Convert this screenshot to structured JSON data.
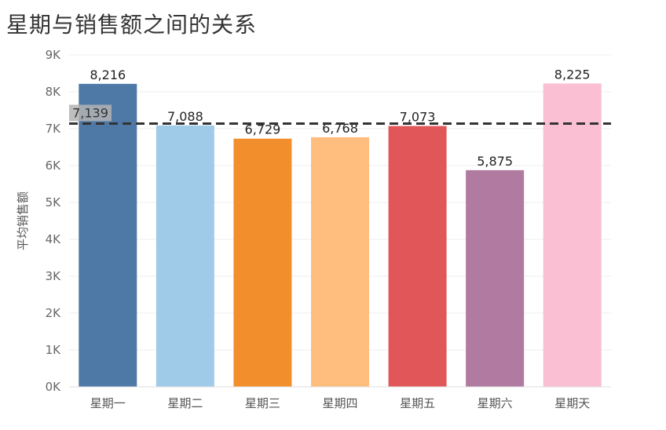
{
  "chart_data": {
    "type": "bar",
    "title": "星期与销售额之间的关系",
    "xlabel": "",
    "ylabel": "平均销售额",
    "categories": [
      "星期一",
      "星期二",
      "星期三",
      "星期四",
      "星期五",
      "星期六",
      "星期天"
    ],
    "values": [
      8216,
      7088,
      6729,
      6768,
      7073,
      5875,
      8225
    ],
    "value_labels": [
      "8,216",
      "7,088",
      "6,729",
      "6,768",
      "7,073",
      "5,875",
      "8,225"
    ],
    "colors": [
      "#4e79a7",
      "#a0cbe8",
      "#f28e2b",
      "#ffbe7d",
      "#e15759",
      "#b07aa1",
      "#fabfd2"
    ],
    "ylim": [
      0,
      9000
    ],
    "yticks": [
      0,
      1000,
      2000,
      3000,
      4000,
      5000,
      6000,
      7000,
      8000,
      9000
    ],
    "ytick_labels": [
      "0K",
      "1K",
      "2K",
      "3K",
      "4K",
      "5K",
      "6K",
      "7K",
      "8K",
      "9K"
    ],
    "reference_line": {
      "value": 7139,
      "label": "7,139",
      "style": "dashed"
    },
    "grid": true
  }
}
